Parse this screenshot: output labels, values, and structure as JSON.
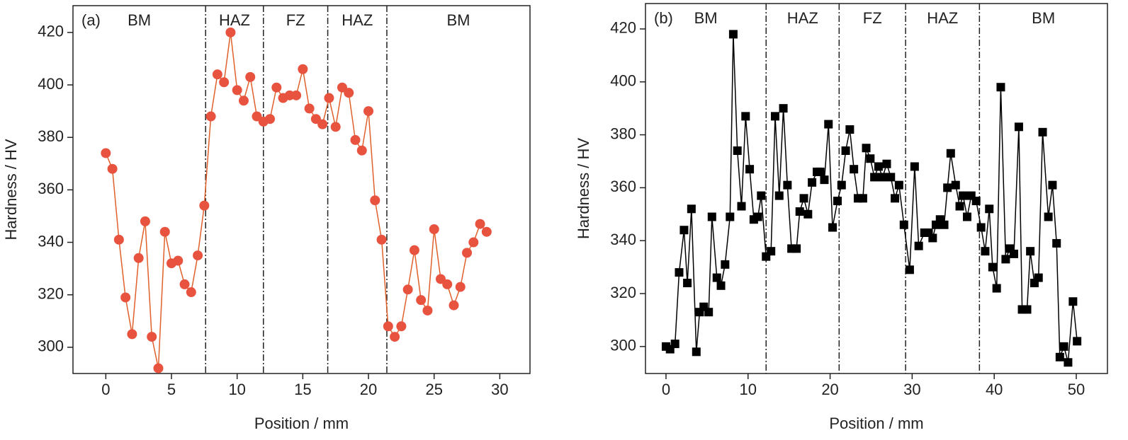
{
  "chart_data": [
    {
      "type": "line",
      "title": "(a)",
      "xlabel": "Position / mm",
      "ylabel": "Hardness / HV",
      "color": "#e8533f",
      "line_color": "#e0602a",
      "marker": "circle",
      "x": [
        0,
        0.5,
        1,
        1.5,
        2,
        2.5,
        3,
        3.5,
        4,
        4.5,
        5,
        5.5,
        6,
        6.5,
        7,
        7.5,
        8,
        8.5,
        9,
        9.5,
        10,
        10.5,
        11,
        11.5,
        12,
        12.5,
        13,
        13.5,
        14,
        14.5,
        15,
        15.5,
        16,
        16.5,
        17,
        17.5,
        18,
        18.5,
        19,
        19.5,
        20,
        20.5,
        21,
        21.5,
        22,
        22.5,
        23,
        23.5,
        24,
        24.5,
        25,
        25.5,
        26,
        26.5,
        27,
        27.5,
        28,
        28.5,
        29
      ],
      "values": [
        374,
        368,
        341,
        319,
        305,
        334,
        348,
        304,
        292,
        344,
        332,
        333,
        324,
        321,
        335,
        354,
        388,
        404,
        401,
        420,
        398,
        394,
        403,
        388,
        386,
        387,
        399,
        395,
        396,
        396,
        406,
        391,
        387,
        385,
        395,
        384,
        399,
        397,
        379,
        375,
        390,
        356,
        341,
        308,
        304,
        308,
        322,
        337,
        318,
        314,
        345,
        326,
        324,
        316,
        323,
        336,
        340,
        347,
        344
      ],
      "xlim": [
        -2.5,
        32.3
      ],
      "ylim": [
        290,
        430.2
      ],
      "xticks": [
        0,
        5,
        10,
        15,
        20,
        25,
        30
      ],
      "yticks": [
        300,
        320,
        340,
        360,
        380,
        400,
        420
      ],
      "boundaries": [
        7.6,
        12.0,
        16.9,
        21.4
      ],
      "zones": [
        "BM",
        "HAZ",
        "FZ",
        "HAZ",
        "BM"
      ]
    },
    {
      "type": "line",
      "title": "(b)",
      "xlabel": "Position / mm",
      "ylabel": "Hardness / HV",
      "color": "#000000",
      "line_color": "#000000",
      "marker": "square",
      "x": [
        0,
        0.5,
        1.1,
        1.6,
        2.2,
        2.6,
        3.1,
        3.7,
        4.1,
        4.6,
        5.2,
        5.6,
        6.2,
        6.7,
        7.2,
        7.8,
        8.2,
        8.7,
        9.2,
        9.7,
        10.2,
        10.7,
        11.2,
        11.6,
        12.2,
        12.8,
        13.3,
        13.8,
        14.3,
        14.8,
        15.3,
        15.9,
        16.3,
        16.8,
        17.3,
        17.8,
        18.4,
        18.8,
        19.3,
        19.8,
        20.3,
        20.9,
        21.4,
        21.9,
        22.4,
        22.9,
        23.4,
        24.0,
        24.4,
        24.9,
        25.4,
        25.9,
        26.4,
        26.9,
        27.4,
        27.9,
        28.4,
        29.0,
        29.7,
        30.3,
        30.8,
        31.5,
        32.0,
        32.5,
        32.9,
        33.4,
        33.9,
        34.3,
        34.7,
        35.3,
        35.8,
        36.2,
        36.7,
        37.2,
        37.8,
        38.4,
        38.9,
        39.4,
        39.8,
        40.3,
        40.8,
        41.4,
        41.9,
        42.4,
        43.0,
        43.4,
        44.0,
        44.4,
        44.9,
        45.4,
        45.9,
        46.6,
        47.1,
        47.6,
        48.0,
        48.5,
        49.0,
        49.6,
        50.1
      ],
      "values": [
        300,
        299,
        301,
        328,
        344,
        324,
        352,
        298,
        313,
        315,
        313,
        349,
        326,
        323,
        331,
        349,
        418,
        374,
        353,
        387,
        367,
        348,
        349,
        357,
        334,
        336,
        387,
        357,
        390,
        361,
        337,
        337,
        351,
        356,
        350,
        362,
        366,
        366,
        363,
        384,
        345,
        355,
        361,
        374,
        382,
        367,
        356,
        356,
        375,
        371,
        364,
        368,
        364,
        369,
        364,
        356,
        361,
        346,
        329,
        368,
        338,
        343,
        343,
        341,
        346,
        348,
        346,
        360,
        373,
        361,
        353,
        357,
        349,
        357,
        355,
        345,
        336,
        352,
        330,
        322,
        398,
        333,
        337,
        335,
        383,
        314,
        314,
        336,
        324,
        326,
        381,
        349,
        361,
        339,
        296,
        300,
        294,
        317,
        302
      ],
      "xlim": [
        -2.5,
        53.8
      ],
      "ylim": [
        289.8,
        429.6
      ],
      "xticks": [
        0,
        10,
        20,
        30,
        40,
        50
      ],
      "yticks": [
        300,
        320,
        340,
        360,
        380,
        400,
        420
      ],
      "boundaries": [
        12.2,
        21.1,
        29.2,
        38.2
      ],
      "zones": [
        "BM",
        "HAZ",
        "FZ",
        "HAZ",
        "BM"
      ]
    }
  ]
}
